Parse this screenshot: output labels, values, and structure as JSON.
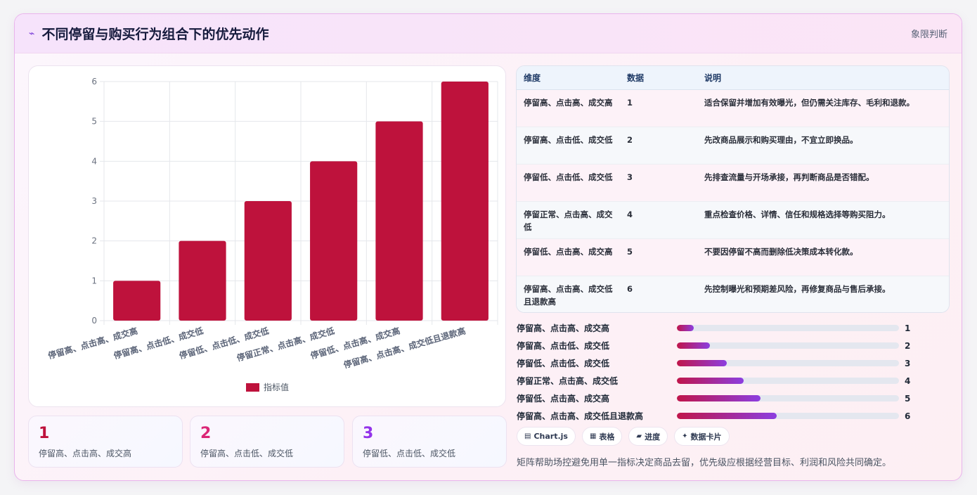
{
  "header": {
    "icon": "chart-trend-icon",
    "title": "不同停留与购买行为组合下的优先动作",
    "tag": "象限判断"
  },
  "chart_data": {
    "type": "bar",
    "categories": [
      "停留高、点击高、成交高",
      "停留高、点击低、成交低",
      "停留低、点击低、成交低",
      "停留正常、点击高、成交低",
      "停留低、点击高、成交高",
      "停留高、点击高、成交低且退款高"
    ],
    "series": [
      {
        "name": "指标值",
        "values": [
          1,
          2,
          3,
          4,
          5,
          6
        ]
      }
    ],
    "yticks": [
      "0",
      "1",
      "2",
      "3",
      "4",
      "5",
      "6"
    ],
    "ylim": [
      0,
      6
    ],
    "grid": true,
    "legend": "bottom",
    "bar_color": "#be123c"
  },
  "stats": [
    {
      "value": "1",
      "label": "停留高、点击高、成交高",
      "color": "#be123c"
    },
    {
      "value": "2",
      "label": "停留高、点击低、成交低",
      "color": "#db2777"
    },
    {
      "value": "3",
      "label": "停留低、点击低、成交低",
      "color": "#9333ea"
    }
  ],
  "table": {
    "headers": [
      "维度",
      "数据",
      "说明"
    ],
    "rows": [
      {
        "dim": "停留高、点击高、成交高",
        "val": "1",
        "desc": "适合保留并增加有效曝光，但仍需关注库存、毛利和退款。"
      },
      {
        "dim": "停留高、点击低、成交低",
        "val": "2",
        "desc": "先改商品展示和购买理由，不宜立即换品。"
      },
      {
        "dim": "停留低、点击低、成交低",
        "val": "3",
        "desc": "先排查流量与开场承接，再判断商品是否错配。"
      },
      {
        "dim": "停留正常、点击高、成交低",
        "val": "4",
        "desc": "重点检查价格、详情、信任和规格选择等购买阻力。"
      },
      {
        "dim": "停留低、点击高、成交高",
        "val": "5",
        "desc": "不要因停留不高而删除低决策成本转化款。"
      },
      {
        "dim": "停留高、点击高、成交低且退款高",
        "val": "6",
        "desc": "先控制曝光和预期差风险，再修复商品与售后承接。"
      }
    ]
  },
  "progress": {
    "max": 6,
    "items": [
      {
        "label": "停留高、点击高、成交高",
        "value": 1,
        "display": "1"
      },
      {
        "label": "停留高、点击低、成交低",
        "value": 2,
        "display": "2"
      },
      {
        "label": "停留低、点击低、成交低",
        "value": 3,
        "display": "3"
      },
      {
        "label": "停留正常、点击高、成交低",
        "value": 4,
        "display": "4"
      },
      {
        "label": "停留低、点击高、成交高",
        "value": 5,
        "display": "5"
      },
      {
        "label": "停留高、点击高、成交低且退款高",
        "value": 6,
        "display": "6"
      }
    ]
  },
  "chips": [
    {
      "icon": "▤",
      "icon_name": "chart-icon",
      "label": "Chart.js"
    },
    {
      "icon": "▦",
      "icon_name": "table-icon",
      "label": "表格"
    },
    {
      "icon": "▰",
      "icon_name": "progress-icon",
      "label": "进度"
    },
    {
      "icon": "✦",
      "icon_name": "sparkle-icon",
      "label": "数据卡片"
    }
  ],
  "footnote": "矩阵帮助场控避免用单一指标决定商品去留，优先级应根据经营目标、利润和风险共同确定。"
}
